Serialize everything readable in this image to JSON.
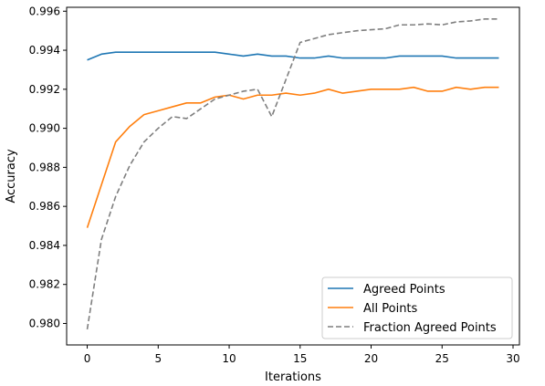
{
  "chart_data": {
    "type": "line",
    "title": "",
    "xlabel": "Iterations",
    "ylabel": "Accuracy",
    "xlim": [
      -1.45,
      30.45
    ],
    "ylim": [
      0.9789,
      0.9962
    ],
    "xticks": [
      0,
      5,
      10,
      15,
      20,
      25,
      30
    ],
    "xtick_labels": [
      "0",
      "5",
      "10",
      "15",
      "20",
      "25",
      "30"
    ],
    "yticks": [
      0.98,
      0.982,
      0.984,
      0.986,
      0.988,
      0.99,
      0.992,
      0.994,
      0.996
    ],
    "ytick_labels": [
      "0.980",
      "0.982",
      "0.984",
      "0.986",
      "0.988",
      "0.990",
      "0.992",
      "0.994",
      "0.996"
    ],
    "grid": false,
    "legend_position": "bottom-right",
    "x": [
      0,
      1,
      2,
      3,
      4,
      5,
      6,
      7,
      8,
      9,
      10,
      11,
      12,
      13,
      14,
      15,
      16,
      17,
      18,
      19,
      20,
      21,
      22,
      23,
      24,
      25,
      26,
      27,
      28,
      29
    ],
    "series": [
      {
        "name": "Agreed Points",
        "color": "#1f77b4",
        "style": "solid",
        "values": [
          0.9935,
          0.9938,
          0.9939,
          0.9939,
          0.9939,
          0.9939,
          0.9939,
          0.9939,
          0.9939,
          0.9939,
          0.9938,
          0.9937,
          0.9938,
          0.9937,
          0.9937,
          0.9936,
          0.9936,
          0.9937,
          0.9936,
          0.9936,
          0.9936,
          0.9936,
          0.9937,
          0.9937,
          0.9937,
          0.9937,
          0.9936,
          0.9936,
          0.9936,
          0.9936
        ]
      },
      {
        "name": "All Points",
        "color": "#ff7f0e",
        "style": "solid",
        "values": [
          0.9849,
          0.9871,
          0.9893,
          0.9901,
          0.9907,
          0.9909,
          0.9911,
          0.9913,
          0.9913,
          0.9916,
          0.9917,
          0.9915,
          0.9917,
          0.9917,
          0.9918,
          0.9917,
          0.9918,
          0.992,
          0.9918,
          0.9919,
          0.992,
          0.992,
          0.992,
          0.9921,
          0.9919,
          0.9919,
          0.9921,
          0.992,
          0.9921,
          0.9921
        ]
      },
      {
        "name": "Fraction Agreed Points",
        "color": "#7f7f7f",
        "style": "dashed",
        "values": [
          0.9797,
          0.9843,
          0.9865,
          0.9881,
          0.9893,
          0.99,
          0.9906,
          0.9905,
          0.991,
          0.9915,
          0.9917,
          0.9919,
          0.992,
          0.9906,
          0.9925,
          0.9944,
          0.9946,
          0.9948,
          0.9949,
          0.995,
          0.99505,
          0.9951,
          0.9953,
          0.9953,
          0.99535,
          0.9953,
          0.99545,
          0.9955,
          0.9956,
          0.9956
        ]
      }
    ]
  }
}
